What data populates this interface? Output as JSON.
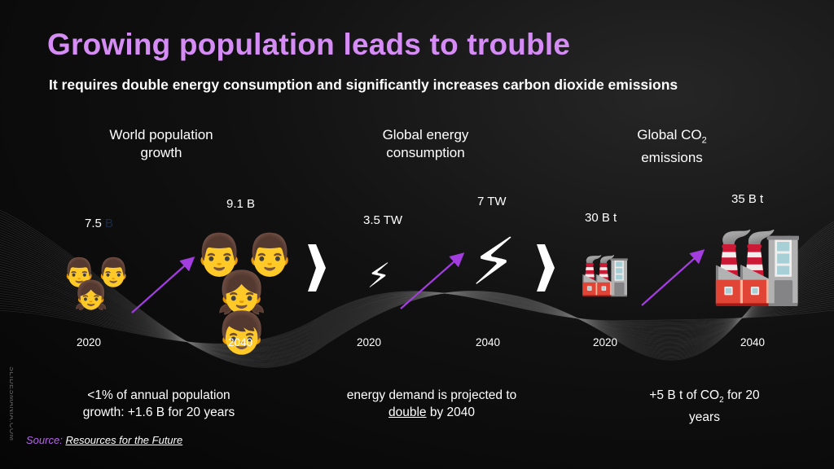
{
  "title": "Growing population leads to trouble",
  "subtitle": "It requires double energy consumption and significantly increases carbon dioxide emissions",
  "columns": [
    {
      "heading_line1": "World population",
      "heading_line2": "growth",
      "value_2020": "7.5",
      "value_2020_unit": "B",
      "value_2040": "9.1 B",
      "year_2020": "2020",
      "year_2040": "2040",
      "icon": "family-icon",
      "note_line1": "<1% of annual population",
      "note_line2": "growth: +1.6 B for 20 years"
    },
    {
      "heading_line1": "Global energy",
      "heading_line2": "consumption",
      "value_2020": "3.5 TW",
      "value_2040": "7 TW",
      "year_2020": "2020",
      "year_2040": "2040",
      "icon": "lightning-icon",
      "note_line1": "energy demand is projected to",
      "note_line2_underlined": "double",
      "note_line2_rest": " by 2040"
    },
    {
      "heading_line1": "Global CO",
      "heading_sub": "2",
      "heading_line2": "emissions",
      "value_2020": "30 B t",
      "value_2040": "35 B t",
      "year_2020": "2020",
      "year_2040": "2040",
      "icon": "factory-icon",
      "note_pre": "+5 B t of CO",
      "note_sub": "2",
      "note_post": " for 20",
      "note_line2": "years"
    }
  ],
  "source": {
    "label": "Source:",
    "link": "Resources for the Future"
  },
  "side_text": "SLIDESMANIA.COM",
  "colors": {
    "title": "#d58cf5",
    "arrow": "#a33de0",
    "source_label": "#b565e8"
  }
}
